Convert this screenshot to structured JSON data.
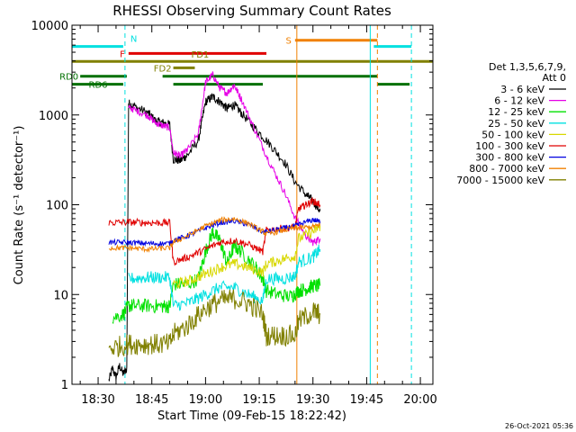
{
  "chart_data": {
    "type": "line",
    "title": "RHESSI Observing Summary Count Rates",
    "xlabel": "Start Time (09-Feb-15 18:22:42)",
    "ylabel": "Count Rate (s⁻¹ detector⁻¹)",
    "yscale": "log",
    "ylim": [
      1,
      10000
    ],
    "xlim": [
      "18:22:42",
      "20:03:30"
    ],
    "y_ticks": [
      "1",
      "10",
      "100",
      "1000",
      "10000"
    ],
    "x_ticks": [
      "18:30",
      "18:45",
      "19:00",
      "19:15",
      "19:30",
      "19:45",
      "20:00"
    ],
    "grid": false,
    "footer": "26-Oct-2021 05:36",
    "legend": {
      "position": "right",
      "title_lines": [
        "Det 1,3,5,6,7,9,",
        "Att 0"
      ],
      "entries": [
        {
          "label": "3 - 6 keV",
          "color": "#000000"
        },
        {
          "label": "6 - 12 keV",
          "color": "#e600e6"
        },
        {
          "label": "12 - 25 keV",
          "color": "#00e000"
        },
        {
          "label": "25 - 50 keV",
          "color": "#00e0e0"
        },
        {
          "label": "50 - 100 keV",
          "color": "#d8d800"
        },
        {
          "label": "100 - 300 keV",
          "color": "#e00000"
        },
        {
          "label": "300 - 800 keV",
          "color": "#0000e0"
        },
        {
          "label": "800 - 7000 keV",
          "color": "#f08000"
        },
        {
          "label": "7000 - 15000 keV",
          "color": "#808000"
        }
      ]
    },
    "flag_bars": [
      {
        "label": "N",
        "color": "#00e0e0",
        "y": 5800,
        "segments": [
          [
            "18:22:42",
            "18:37:00"
          ],
          [
            "19:47:00",
            "19:57:30"
          ]
        ]
      },
      {
        "label": "S",
        "color": "#f08000",
        "y": 6800,
        "segments": [
          [
            "19:25:00",
            "19:48:00"
          ]
        ]
      },
      {
        "label": "F",
        "color": "#e00000",
        "y": 4850,
        "segments": [
          [
            "18:38:30",
            "19:17:00"
          ]
        ]
      },
      {
        "label": "FD1",
        "color": "#808000",
        "y": 3950,
        "segments": [
          [
            "18:22:42",
            "20:03:30"
          ]
        ]
      },
      {
        "label": "FD2",
        "color": "#808000",
        "y": 3350,
        "segments": [
          [
            "18:51:00",
            "18:57:00"
          ]
        ]
      },
      {
        "label": "RD0",
        "color": "#007000",
        "y": 2700,
        "segments": [
          [
            "18:25:00",
            "18:38:00"
          ],
          [
            "18:48:00",
            "19:48:00"
          ]
        ]
      },
      {
        "label": "RD6",
        "color": "#007000",
        "y": 2200,
        "segments": [
          [
            "18:22:42",
            "18:37:00"
          ],
          [
            "18:51:00",
            "19:16:00"
          ],
          [
            "19:48:00",
            "19:57:00"
          ]
        ]
      }
    ],
    "vertical_lines": [
      {
        "x": "18:22:42",
        "color": "#00e0e0",
        "style": "solid"
      },
      {
        "x": "18:37:30",
        "color": "#00e0e0",
        "style": "dashed"
      },
      {
        "x": "19:25:30",
        "color": "#f08000",
        "style": "solid"
      },
      {
        "x": "19:46:00",
        "color": "#00e0e0",
        "style": "solid"
      },
      {
        "x": "19:48:00",
        "color": "#f08000",
        "style": "dashed"
      },
      {
        "x": "19:57:30",
        "color": "#00e0e0",
        "style": "dashed"
      }
    ],
    "series": [
      {
        "name": "3 - 6 keV",
        "color": "#000000",
        "noise": 0.05,
        "points": [
          [
            "18:33:00",
            1.1
          ],
          [
            "18:34:00",
            1.5
          ],
          [
            "18:35:00",
            1.2
          ],
          [
            "18:36:00",
            1.6
          ],
          [
            "18:37:00",
            1.3
          ],
          [
            "18:38:00",
            1.5
          ],
          [
            "18:38:30",
            1350
          ],
          [
            "18:40:00",
            1250
          ],
          [
            "18:44:00",
            1050
          ],
          [
            "18:46:00",
            860
          ],
          [
            "18:48:00",
            820
          ],
          [
            "18:50:00",
            780
          ],
          [
            "18:51:00",
            320
          ],
          [
            "18:53:00",
            310
          ],
          [
            "18:55:00",
            360
          ],
          [
            "18:58:00",
            520
          ],
          [
            "19:00:00",
            1400
          ],
          [
            "19:02:00",
            1600
          ],
          [
            "19:04:00",
            1400
          ],
          [
            "19:06:00",
            1180
          ],
          [
            "19:08:00",
            1300
          ],
          [
            "19:10:00",
            1050
          ],
          [
            "19:14:00",
            700
          ],
          [
            "19:18:00",
            470
          ],
          [
            "19:22:00",
            300
          ],
          [
            "19:25:00",
            180
          ],
          [
            "19:28:00",
            130
          ],
          [
            "19:30:00",
            110
          ],
          [
            "19:32:00",
            85
          ]
        ]
      },
      {
        "name": "6 - 12 keV",
        "color": "#e600e6",
        "noise": 0.04,
        "points": [
          [
            "18:38:30",
            1200
          ],
          [
            "18:40:00",
            1150
          ],
          [
            "18:44:00",
            980
          ],
          [
            "18:46:00",
            820
          ],
          [
            "18:48:00",
            760
          ],
          [
            "18:50:00",
            720
          ],
          [
            "18:51:00",
            380
          ],
          [
            "18:53:00",
            350
          ],
          [
            "18:55:00",
            410
          ],
          [
            "18:58:00",
            620
          ],
          [
            "19:00:00",
            2300
          ],
          [
            "19:02:00",
            2800
          ],
          [
            "19:04:00",
            2000
          ],
          [
            "19:06:00",
            1750
          ],
          [
            "19:08:00",
            2150
          ],
          [
            "19:10:00",
            1500
          ],
          [
            "19:14:00",
            650
          ],
          [
            "19:18:00",
            290
          ],
          [
            "19:22:00",
            140
          ],
          [
            "19:25:00",
            72
          ],
          [
            "19:28:00",
            45
          ],
          [
            "19:30:00",
            38
          ],
          [
            "19:32:00",
            42
          ]
        ]
      },
      {
        "name": "12 - 25 keV",
        "color": "#00e000",
        "noise": 0.08,
        "points": [
          [
            "18:34:00",
            5.5
          ],
          [
            "18:37:00",
            6.0
          ],
          [
            "18:38:30",
            7.5
          ],
          [
            "18:40:00",
            7.5
          ],
          [
            "18:44:00",
            7.5
          ],
          [
            "18:48:00",
            7.4
          ],
          [
            "18:50:00",
            7.4
          ],
          [
            "18:51:00",
            13
          ],
          [
            "18:55:00",
            13
          ],
          [
            "18:58:00",
            15
          ],
          [
            "19:00:00",
            30
          ],
          [
            "19:02:00",
            50
          ],
          [
            "19:04:00",
            40
          ],
          [
            "19:06:00",
            22
          ],
          [
            "19:08:00",
            35
          ],
          [
            "19:10:00",
            30
          ],
          [
            "19:14:00",
            20
          ],
          [
            "19:16:00",
            15
          ],
          [
            "19:17:00",
            11
          ],
          [
            "19:20:00",
            10
          ],
          [
            "19:24:00",
            9.5
          ],
          [
            "19:26:00",
            11
          ],
          [
            "19:28:00",
            11.5
          ],
          [
            "19:30:00",
            12.5
          ],
          [
            "19:32:00",
            12.5
          ]
        ]
      },
      {
        "name": "25 - 50 keV",
        "color": "#00e0e0",
        "noise": 0.07,
        "points": [
          [
            "18:38:30",
            15
          ],
          [
            "18:44:00",
            15.5
          ],
          [
            "18:50:00",
            15.5
          ],
          [
            "18:51:00",
            7.5
          ],
          [
            "18:55:00",
            8
          ],
          [
            "19:00:00",
            10
          ],
          [
            "19:04:00",
            12
          ],
          [
            "19:08:00",
            12
          ],
          [
            "19:12:00",
            10
          ],
          [
            "19:16:00",
            8.5
          ],
          [
            "19:17:00",
            15
          ],
          [
            "19:22:00",
            15
          ],
          [
            "19:25:00",
            16
          ],
          [
            "19:26:00",
            23
          ],
          [
            "19:30:00",
            26
          ],
          [
            "19:32:00",
            32
          ]
        ]
      },
      {
        "name": "50 - 100 keV",
        "color": "#d8d800",
        "noise": 0.06,
        "points": [
          [
            "18:51:00",
            13
          ],
          [
            "18:55:00",
            14
          ],
          [
            "19:00:00",
            17
          ],
          [
            "19:04:00",
            20
          ],
          [
            "19:08:00",
            22
          ],
          [
            "19:12:00",
            20
          ],
          [
            "19:16:00",
            17.5
          ],
          [
            "19:17:00",
            22
          ],
          [
            "19:22:00",
            25
          ],
          [
            "19:25:00",
            27
          ],
          [
            "19:26:00",
            42
          ],
          [
            "19:30:00",
            50
          ],
          [
            "19:32:00",
            58
          ]
        ]
      },
      {
        "name": "100 - 300 keV",
        "color": "#e00000",
        "noise": 0.04,
        "points": [
          [
            "18:33:00",
            63
          ],
          [
            "18:38:30",
            64
          ],
          [
            "18:44:00",
            63
          ],
          [
            "18:50:00",
            63
          ],
          [
            "18:51:00",
            23
          ],
          [
            "18:55:00",
            26
          ],
          [
            "19:00:00",
            32
          ],
          [
            "19:04:00",
            38
          ],
          [
            "19:08:00",
            40
          ],
          [
            "19:12:00",
            36
          ],
          [
            "19:16:00",
            30
          ],
          [
            "19:17:00",
            52
          ],
          [
            "19:22:00",
            55
          ],
          [
            "19:25:00",
            56
          ],
          [
            "19:26:00",
            90
          ],
          [
            "19:28:00",
            100
          ],
          [
            "19:30:00",
            110
          ],
          [
            "19:32:00",
            100
          ]
        ]
      },
      {
        "name": "300 - 800 keV",
        "color": "#0000e0",
        "noise": 0.03,
        "points": [
          [
            "18:33:00",
            38
          ],
          [
            "18:38:30",
            38
          ],
          [
            "18:44:00",
            37
          ],
          [
            "18:50:00",
            37
          ],
          [
            "18:51:00",
            40
          ],
          [
            "18:55:00",
            45
          ],
          [
            "19:00:00",
            55
          ],
          [
            "19:04:00",
            63
          ],
          [
            "19:08:00",
            66
          ],
          [
            "19:12:00",
            60
          ],
          [
            "19:16:00",
            50
          ],
          [
            "19:17:00",
            50
          ],
          [
            "19:22:00",
            55
          ],
          [
            "19:25:00",
            58
          ],
          [
            "19:26:00",
            60
          ],
          [
            "19:30:00",
            68
          ],
          [
            "19:32:00",
            65
          ]
        ]
      },
      {
        "name": "800 - 7000 keV",
        "color": "#f08000",
        "noise": 0.03,
        "points": [
          [
            "18:33:00",
            33
          ],
          [
            "18:38:30",
            33
          ],
          [
            "18:44:00",
            32
          ],
          [
            "18:50:00",
            33
          ],
          [
            "18:51:00",
            38
          ],
          [
            "18:55:00",
            45
          ],
          [
            "19:00:00",
            58
          ],
          [
            "19:04:00",
            67
          ],
          [
            "19:08:00",
            70
          ],
          [
            "19:12:00",
            62
          ],
          [
            "19:16:00",
            50
          ],
          [
            "19:17:00",
            47
          ],
          [
            "19:22:00",
            52
          ],
          [
            "19:25:00",
            55
          ],
          [
            "19:26:00",
            55
          ],
          [
            "19:30:00",
            57
          ],
          [
            "19:32:00",
            60
          ]
        ]
      },
      {
        "name": "7000 - 15000 keV",
        "color": "#808000",
        "noise": 0.12,
        "points": [
          [
            "18:33:00",
            2.5
          ],
          [
            "18:38:30",
            2.8
          ],
          [
            "18:44:00",
            2.8
          ],
          [
            "18:50:00",
            2.8
          ],
          [
            "18:51:00",
            3.6
          ],
          [
            "18:55:00",
            4.5
          ],
          [
            "19:00:00",
            7
          ],
          [
            "19:04:00",
            8.5
          ],
          [
            "19:08:00",
            9
          ],
          [
            "19:12:00",
            8
          ],
          [
            "19:16:00",
            6
          ],
          [
            "19:17:00",
            3.5
          ],
          [
            "19:22:00",
            3.5
          ],
          [
            "19:25:00",
            3.5
          ],
          [
            "19:26:00",
            5
          ],
          [
            "19:30:00",
            6.5
          ],
          [
            "19:32:00",
            6
          ]
        ]
      }
    ]
  }
}
